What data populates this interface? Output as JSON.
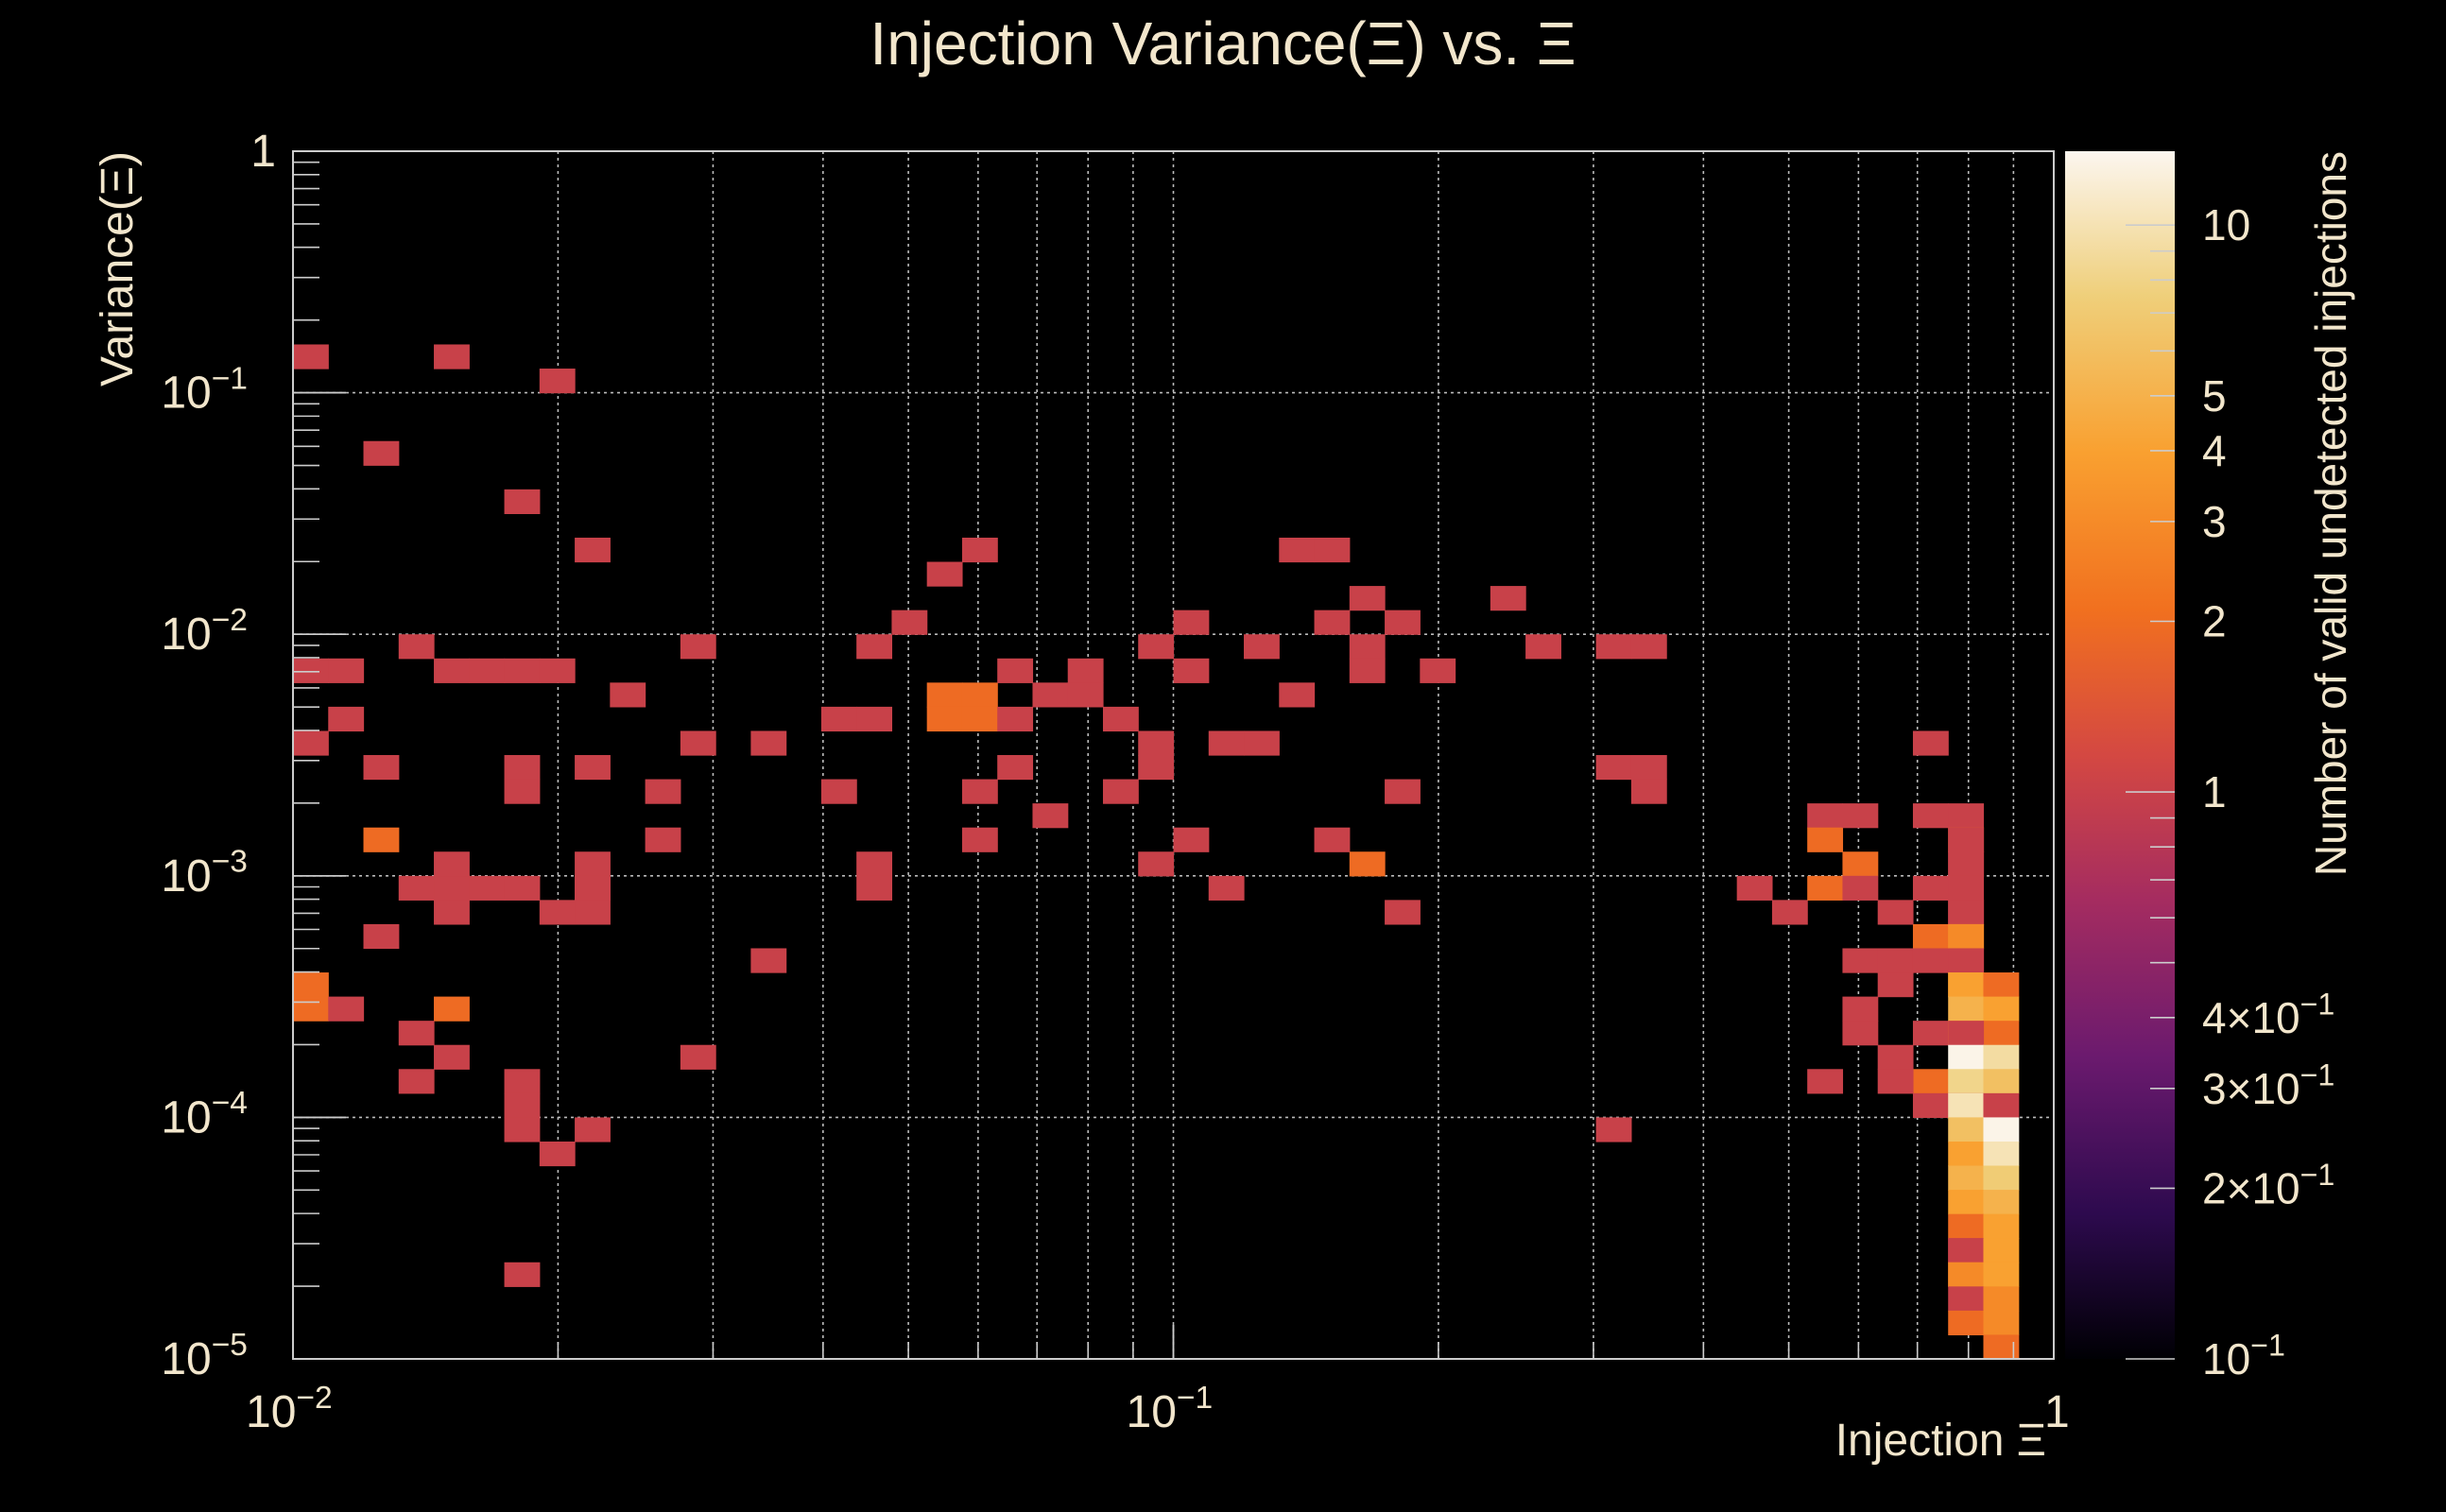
{
  "chart_data": {
    "type": "heatmap",
    "title": "Injection Variance(Ξ) vs. Ξ",
    "xlabel": "Injection Ξ",
    "ylabel": "Variance(Ξ)",
    "zlabel": "Number of valid undetected injections",
    "x_scale": "log",
    "y_scale": "log",
    "z_scale": "log",
    "xlim": [
      0.01,
      1
    ],
    "ylim": [
      1e-05,
      1
    ],
    "zlim": [
      0.1,
      13.5
    ],
    "grid": true,
    "x_ticks": [
      {
        "value": 0.01,
        "base": "10",
        "exp": "−2"
      },
      {
        "value": 0.1,
        "base": "10",
        "exp": "−1"
      },
      {
        "value": 1,
        "base": "1",
        "exp": ""
      }
    ],
    "y_ticks": [
      {
        "value": 1e-05,
        "base": "10",
        "exp": "−5"
      },
      {
        "value": 0.0001,
        "base": "10",
        "exp": "−4"
      },
      {
        "value": 0.001,
        "base": "10",
        "exp": "−3"
      },
      {
        "value": 0.01,
        "base": "10",
        "exp": "−2"
      },
      {
        "value": 0.1,
        "base": "10",
        "exp": "−1"
      },
      {
        "value": 1,
        "base": "1",
        "exp": ""
      }
    ],
    "z_ticks": [
      {
        "value": 0.1,
        "base": "10",
        "exp": "−1"
      },
      {
        "value": 0.2,
        "base": "2×10",
        "exp": "−1"
      },
      {
        "value": 0.3,
        "base": "3×10",
        "exp": "−1"
      },
      {
        "value": 0.4,
        "base": "4×10",
        "exp": "−1"
      },
      {
        "value": 1,
        "base": "1",
        "exp": ""
      },
      {
        "value": 2,
        "base": "2",
        "exp": ""
      },
      {
        "value": 3,
        "base": "3",
        "exp": ""
      },
      {
        "value": 4,
        "base": "4",
        "exp": ""
      },
      {
        "value": 5,
        "base": "5",
        "exp": ""
      },
      {
        "value": 10,
        "base": "10",
        "exp": ""
      }
    ],
    "colorscale": [
      "#000004",
      "#2d0a4e",
      "#6b1a6e",
      "#a52c60",
      "#d44842",
      "#f1701f",
      "#f9a030",
      "#efcf7a",
      "#fcf6ef"
    ],
    "bins_x": 50,
    "bins_y": 50,
    "cells": [
      [
        0.0101,
        0.1479,
        1
      ],
      [
        0.0153,
        0.1479,
        1
      ],
      [
        0.0195,
        0.1175,
        1
      ],
      [
        0.0123,
        0.0589,
        1
      ],
      [
        0.0178,
        0.0372,
        1
      ],
      [
        0.0214,
        0.0234,
        1
      ],
      [
        0.0147,
        0.0074,
        1
      ],
      [
        0.0165,
        0.0074,
        1
      ],
      [
        0.0237,
        0.0059,
        1
      ],
      [
        0.0101,
        0.0074,
        1
      ],
      [
        0.0112,
        0.0074,
        1
      ],
      [
        0.0137,
        0.0093,
        1
      ],
      [
        0.0115,
        0.0047,
        1
      ],
      [
        0.0101,
        0.0037,
        1
      ],
      [
        0.0124,
        0.0029,
        1
      ],
      [
        0.0179,
        0.0029,
        1
      ],
      [
        0.0179,
        0.0023,
        1
      ],
      [
        0.0227,
        0.0029,
        1
      ],
      [
        0.0255,
        0.0023,
        1
      ],
      [
        0.0185,
        0.0074,
        1
      ],
      [
        0.0201,
        0.0074,
        1
      ],
      [
        0.0124,
        0.0015,
        2
      ],
      [
        0.0253,
        0.0015,
        1
      ],
      [
        0.0134,
        0.00093,
        1
      ],
      [
        0.015,
        0.00093,
        1
      ],
      [
        0.015,
        0.00118,
        1
      ],
      [
        0.015,
        0.00074,
        1
      ],
      [
        0.0165,
        0.00093,
        1
      ],
      [
        0.018,
        0.00093,
        1
      ],
      [
        0.0195,
        0.00074,
        1
      ],
      [
        0.0211,
        0.00093,
        1
      ],
      [
        0.0211,
        0.00118,
        1
      ],
      [
        0.0228,
        0.00093,
        1
      ],
      [
        0.0228,
        0.00074,
        1
      ],
      [
        0.0123,
        0.00059,
        1
      ],
      [
        0.0101,
        0.00037,
        2
      ],
      [
        0.0101,
        0.00029,
        2
      ],
      [
        0.0112,
        0.00029,
        1
      ],
      [
        0.015,
        0.00029,
        2
      ],
      [
        0.0143,
        0.00023,
        1
      ],
      [
        0.0157,
        0.00019,
        1
      ],
      [
        0.0135,
        0.00015,
        1
      ],
      [
        0.018,
        0.00015,
        1
      ],
      [
        0.018,
        0.00012,
        1
      ],
      [
        0.018,
        9.3e-05,
        1
      ],
      [
        0.0209,
        9.3e-05,
        1
      ],
      [
        0.0198,
        7.4e-05,
        1
      ],
      [
        0.018,
        2.3e-05,
        1
      ],
      [
        0.0299,
        0.0093,
        1
      ],
      [
        0.0299,
        0.0037,
        1
      ],
      [
        0.0299,
        0.00019,
        1
      ],
      [
        0.0358,
        0.0037,
        1
      ],
      [
        0.0363,
        0.00047,
        1
      ],
      [
        0.0402,
        0.0023,
        1
      ],
      [
        0.0422,
        0.0047,
        1
      ],
      [
        0.0449,
        0.0047,
        1
      ],
      [
        0.0443,
        0.0093,
        1
      ],
      [
        0.0443,
        0.00118,
        1
      ],
      [
        0.0443,
        0.00093,
        1
      ],
      [
        0.0515,
        0.0118,
        1
      ],
      [
        0.0562,
        0.0186,
        1
      ],
      [
        0.0615,
        0.0234,
        1
      ],
      [
        0.056,
        0.0059,
        2
      ],
      [
        0.056,
        0.0047,
        2
      ],
      [
        0.0615,
        0.0059,
        2
      ],
      [
        0.0615,
        0.0047,
        2
      ],
      [
        0.0658,
        0.0047,
        1
      ],
      [
        0.0658,
        0.0074,
        1
      ],
      [
        0.0658,
        0.0029,
        1
      ],
      [
        0.0615,
        0.0023,
        1
      ],
      [
        0.0615,
        0.0015,
        1
      ],
      [
        0.072,
        0.0059,
        1
      ],
      [
        0.0781,
        0.0059,
        1
      ],
      [
        0.0781,
        0.0074,
        1
      ],
      [
        0.086,
        0.0047,
        1
      ],
      [
        0.0694,
        0.0018,
        1
      ],
      [
        0.086,
        0.0023,
        1
      ],
      [
        0.0942,
        0.0093,
        1
      ],
      [
        0.0942,
        0.0037,
        1
      ],
      [
        0.0942,
        0.0029,
        1
      ],
      [
        0.0942,
        0.00118,
        1
      ],
      [
        0.103,
        0.0118,
        1
      ],
      [
        0.103,
        0.0074,
        1
      ],
      [
        0.103,
        0.0015,
        1
      ],
      [
        0.1132,
        0.00093,
        1
      ],
      [
        0.1158,
        0.0037,
        1
      ],
      [
        0.1255,
        0.0037,
        1
      ],
      [
        0.1234,
        0.0093,
        1
      ],
      [
        0.1363,
        0.0059,
        1
      ],
      [
        0.1381,
        0.0234,
        1
      ],
      [
        0.1516,
        0.0234,
        1
      ],
      [
        0.1516,
        0.0118,
        1
      ],
      [
        0.1516,
        0.0015,
        1
      ],
      [
        0.1669,
        0.0147,
        1
      ],
      [
        0.1669,
        0.0093,
        1
      ],
      [
        0.1669,
        0.0074,
        1
      ],
      [
        0.1669,
        0.00118,
        2
      ],
      [
        0.1835,
        0.0118,
        1
      ],
      [
        0.1835,
        0.0023,
        1
      ],
      [
        0.1835,
        0.00074,
        1
      ],
      [
        0.2019,
        0.0074,
        1
      ],
      [
        0.2476,
        0.0147,
        1
      ],
      [
        0.2731,
        0.0093,
        1
      ],
      [
        0.3131,
        0.0093,
        1
      ],
      [
        0.3459,
        0.0093,
        1
      ],
      [
        0.3131,
        0.0029,
        1
      ],
      [
        0.3459,
        0.0029,
        1
      ],
      [
        0.3459,
        0.0023,
        1
      ],
      [
        0.3131,
        9.3e-05,
        1
      ],
      [
        0.462,
        0.00093,
        1
      ],
      [
        0.501,
        0.00074,
        1
      ],
      [
        0.53,
        0.0018,
        1
      ],
      [
        0.53,
        0.0015,
        2
      ],
      [
        0.53,
        0.00093,
        2
      ],
      [
        0.581,
        0.0018,
        1
      ],
      [
        0.581,
        0.00118,
        2
      ],
      [
        0.581,
        0.00093,
        1
      ],
      [
        0.581,
        0.00047,
        1
      ],
      [
        0.637,
        0.00074,
        1
      ],
      [
        0.637,
        0.00047,
        1
      ],
      [
        0.637,
        0.00037,
        1
      ],
      [
        0.581,
        0.00029,
        1
      ],
      [
        0.581,
        0.00023,
        1
      ],
      [
        0.552,
        0.00015,
        1
      ],
      [
        0.695,
        0.00093,
        1
      ],
      [
        0.695,
        0.00059,
        2
      ],
      [
        0.695,
        0.00047,
        1
      ],
      [
        0.695,
        0.00023,
        1
      ],
      [
        0.695,
        0.00015,
        2
      ],
      [
        0.637,
        0.00019,
        1
      ],
      [
        0.637,
        0.00015,
        1
      ],
      [
        0.695,
        0.00012,
        1
      ],
      [
        0.732,
        0.0037,
        1
      ],
      [
        0.732,
        0.0018,
        1
      ],
      [
        0.762,
        0.0018,
        1
      ],
      [
        0.762,
        0.0015,
        2
      ],
      [
        0.762,
        0.00118,
        1
      ],
      [
        0.819,
        0.0015,
        1
      ],
      [
        0.819,
        0.00118,
        1
      ],
      [
        0.762,
        0.00093,
        1
      ],
      [
        0.762,
        0.00074,
        1
      ],
      [
        0.819,
        0.00074,
        1
      ],
      [
        0.762,
        0.00059,
        3
      ],
      [
        0.819,
        0.00059,
        3
      ],
      [
        0.762,
        0.00047,
        1
      ],
      [
        0.819,
        0.00047,
        1
      ],
      [
        0.762,
        0.00037,
        3
      ],
      [
        0.819,
        0.00037,
        4
      ],
      [
        0.898,
        0.00037,
        2
      ],
      [
        0.819,
        0.00029,
        5
      ],
      [
        0.898,
        0.00029,
        4
      ],
      [
        0.819,
        0.00023,
        3
      ],
      [
        0.898,
        0.00023,
        2
      ],
      [
        0.762,
        0.00023,
        1
      ],
      [
        0.819,
        0.00019,
        13
      ],
      [
        0.898,
        0.00019,
        9
      ],
      [
        0.819,
        0.00015,
        8
      ],
      [
        0.898,
        0.00015,
        6
      ],
      [
        0.762,
        0.00012,
        1
      ],
      [
        0.819,
        0.00012,
        10
      ],
      [
        0.898,
        0.00012,
        1
      ],
      [
        0.819,
        9.3e-05,
        6
      ],
      [
        0.898,
        9.3e-05,
        13
      ],
      [
        0.819,
        7.4e-05,
        4
      ],
      [
        0.898,
        7.4e-05,
        10
      ],
      [
        0.819,
        5.9e-05,
        5
      ],
      [
        0.898,
        5.9e-05,
        7
      ],
      [
        0.819,
        4.7e-05,
        4
      ],
      [
        0.898,
        4.7e-05,
        5
      ],
      [
        0.819,
        3.7e-05,
        2
      ],
      [
        0.898,
        3.7e-05,
        4
      ],
      [
        0.762,
        2.9e-05,
        1
      ],
      [
        0.819,
        2.9e-05,
        1
      ],
      [
        0.898,
        2.9e-05,
        4
      ],
      [
        0.762,
        2.3e-05,
        2
      ],
      [
        0.819,
        2.3e-05,
        3
      ],
      [
        0.898,
        2.3e-05,
        4
      ],
      [
        0.819,
        1.8e-05,
        1
      ],
      [
        0.898,
        1.8e-05,
        3
      ],
      [
        0.819,
        1.5e-05,
        2
      ],
      [
        0.898,
        1.5e-05,
        3
      ],
      [
        0.898,
        1.2e-05,
        2
      ]
    ]
  }
}
